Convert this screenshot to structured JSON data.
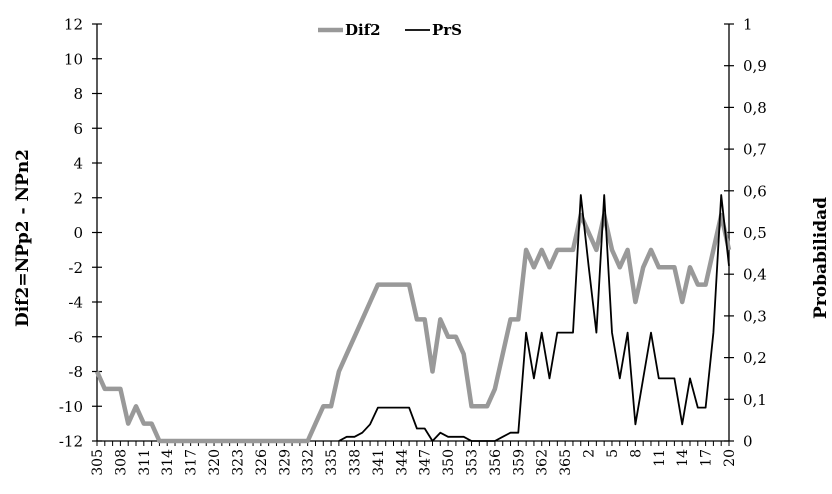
{
  "chart_data": {
    "type": "line",
    "x": [
      305,
      306,
      307,
      308,
      309,
      310,
      311,
      312,
      313,
      314,
      315,
      316,
      317,
      318,
      319,
      320,
      321,
      322,
      323,
      324,
      325,
      326,
      327,
      328,
      329,
      330,
      331,
      332,
      333,
      334,
      335,
      336,
      337,
      338,
      339,
      340,
      341,
      342,
      343,
      344,
      345,
      346,
      347,
      348,
      349,
      350,
      351,
      352,
      353,
      354,
      355,
      356,
      357,
      358,
      359,
      360,
      361,
      362,
      363,
      364,
      365,
      366,
      1,
      2,
      3,
      4,
      5,
      6,
      7,
      8,
      9,
      10,
      11,
      12,
      13,
      14,
      15,
      16,
      17,
      18,
      19,
      20
    ],
    "x_tick_labels": [
      "305",
      "308",
      "311",
      "314",
      "317",
      "320",
      "323",
      "326",
      "329",
      "332",
      "335",
      "338",
      "341",
      "344",
      "347",
      "350",
      "353",
      "356",
      "359",
      "362",
      "365",
      "2",
      "5",
      "8",
      "11",
      "14",
      "17",
      "20"
    ],
    "ylabel": "Dif2=NPp2 - NPn2",
    "y2label": "Probabilidad",
    "ylim": [
      -12,
      12
    ],
    "y_ticks": [
      "-12",
      "-10",
      "-8",
      "-6",
      "-4",
      "-2",
      "0",
      "2",
      "4",
      "6",
      "8",
      "10",
      "12"
    ],
    "y2lim": [
      0,
      1
    ],
    "y2_ticks": [
      "0",
      "0,1",
      "0,2",
      "0,3",
      "0,4",
      "0,5",
      "0,6",
      "0,7",
      "0,8",
      "0,9",
      "1"
    ],
    "legend_position": "top",
    "series": [
      {
        "name": "Dif2",
        "axis": "left",
        "color": "#999999",
        "values": [
          -8,
          -9,
          -9,
          -9,
          -11,
          -10,
          -11,
          -11,
          -12,
          -12,
          -12,
          -12,
          -12,
          -12,
          -12,
          -12,
          -12,
          -12,
          -12,
          -12,
          -12,
          -12,
          -12,
          -12,
          -12,
          -12,
          -12,
          -12,
          -11,
          -10,
          -10,
          -8,
          -7,
          -6,
          -5,
          -4,
          -3,
          -3,
          -3,
          -3,
          -3,
          -5,
          -5,
          -8,
          -5,
          -6,
          -6,
          -7,
          -10,
          -10,
          -10,
          -9,
          -7,
          -5,
          -5,
          -1,
          -2,
          -1,
          -2,
          -1,
          -1,
          -1,
          1,
          0,
          -1,
          1,
          -1,
          -2,
          -1,
          -4,
          -2,
          -1,
          -2,
          -2,
          -2,
          -4,
          -2,
          -3,
          -3,
          -1,
          1,
          -1
        ]
      },
      {
        "name": "PrS",
        "axis": "right",
        "color": "#000000",
        "values": [
          null,
          null,
          null,
          null,
          null,
          null,
          null,
          null,
          null,
          null,
          null,
          null,
          null,
          null,
          null,
          null,
          null,
          null,
          null,
          null,
          null,
          null,
          null,
          null,
          null,
          null,
          null,
          null,
          null,
          null,
          null,
          0,
          0.01,
          0.01,
          0.02,
          0.04,
          0.08,
          0.08,
          0.08,
          0.08,
          0.08,
          0.03,
          0.03,
          0,
          0.02,
          0.01,
          0.01,
          0.01,
          0,
          0,
          0,
          0,
          0.01,
          0.02,
          0.02,
          0.26,
          0.15,
          0.26,
          0.15,
          0.26,
          0.26,
          0.26,
          0.59,
          0.42,
          0.26,
          0.59,
          0.26,
          0.15,
          0.26,
          0.04,
          0.15,
          0.26,
          0.15,
          0.15,
          0.15,
          0.04,
          0.15,
          0.08,
          0.08,
          0.26,
          0.59,
          0.42
        ]
      }
    ]
  }
}
